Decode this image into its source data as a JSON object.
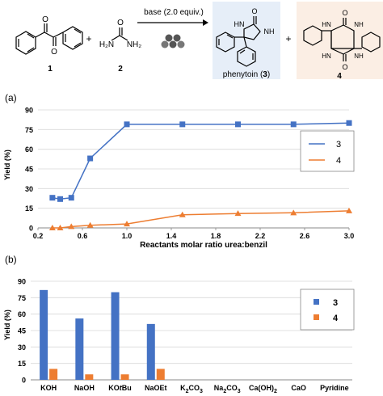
{
  "scheme": {
    "reactant1_label": "1",
    "reactant2_label": "2",
    "plus1": "+",
    "plus2": "+",
    "urea_nh2_left": "H₂N",
    "urea_nh2_right": "NH₂",
    "urea_o": "O",
    "arrow_label": "base (2.0 equiv.)",
    "product3_name": "phenytoin (",
    "product3_num": "3",
    "product3_close": ")",
    "product4_label": "4",
    "o_label": "O",
    "nh_label": "NH",
    "hn_label": "HN",
    "hn_label2": "HN",
    "colors": {
      "box3": "#e6eef8",
      "box4": "#fbeee4"
    }
  },
  "panel_labels": {
    "a": "(a)",
    "b": "(b)"
  },
  "chart_data": [
    {
      "type": "line",
      "ylabel": "Yield (%)",
      "xlabel": "Reactants molar ratio urea:benzil",
      "xlim": [
        0.2,
        3.0
      ],
      "ylim": [
        0,
        90
      ],
      "xticks": [
        "0.2",
        "0.6",
        "1.0",
        "1.4",
        "1.8",
        "2.2",
        "2.6",
        "3.0"
      ],
      "yticks": [
        "0",
        "15",
        "30",
        "45",
        "60",
        "75",
        "90"
      ],
      "grid": "horizontal",
      "legend_position": "right",
      "series": [
        {
          "name": "3",
          "color": "#4472c4",
          "marker": "square",
          "x": [
            0.33,
            0.4,
            0.5,
            0.67,
            1.0,
            1.5,
            2.0,
            2.5,
            3.0
          ],
          "y": [
            23,
            22,
            23,
            53,
            79,
            79,
            79,
            79,
            80
          ]
        },
        {
          "name": "4",
          "color": "#ed7d31",
          "marker": "triangle",
          "x": [
            0.33,
            0.4,
            0.5,
            0.67,
            1.0,
            1.5,
            2.0,
            2.5,
            3.0
          ],
          "y": [
            0,
            0,
            1,
            2,
            3,
            10,
            11,
            11.5,
            13
          ]
        }
      ]
    },
    {
      "type": "bar",
      "ylabel": "Yield (%)",
      "ylim": [
        0,
        90
      ],
      "yticks": [
        "0",
        "15",
        "30",
        "45",
        "60",
        "75",
        "90"
      ],
      "grid": "horizontal",
      "legend_position": "right",
      "categories": [
        "KOH",
        "NaOH",
        "KOtBu",
        "NaOEt",
        "K2CO3",
        "Na2CO3",
        "Ca(OH)2",
        "CaO",
        "Pyridine"
      ],
      "series": [
        {
          "name": "3",
          "color": "#4472c4",
          "values": [
            82,
            56,
            80,
            51,
            0,
            0,
            0,
            0,
            0
          ]
        },
        {
          "name": "4",
          "color": "#ed7d31",
          "values": [
            10,
            5,
            5,
            10,
            0,
            0,
            0,
            0,
            0
          ]
        }
      ]
    }
  ]
}
